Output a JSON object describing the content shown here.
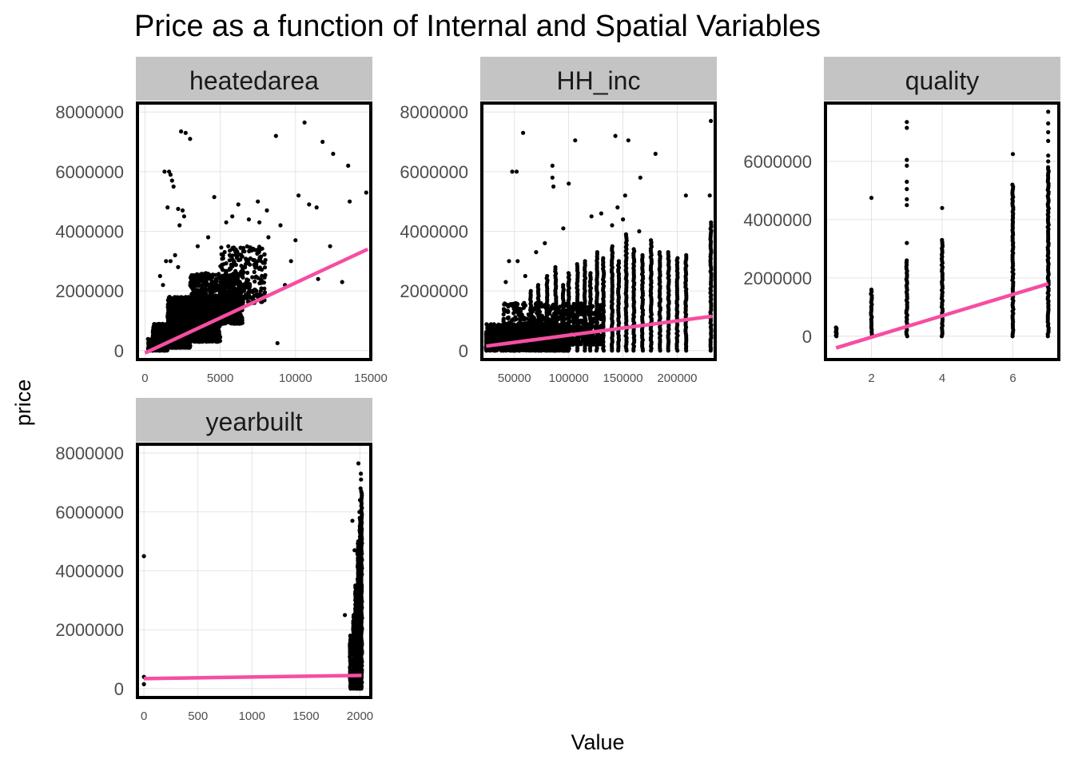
{
  "chart_data": {
    "type": "scatter",
    "title": "Price as a function of Internal and Spatial Variables",
    "xlabel": "Value",
    "ylabel": "price",
    "grid": true,
    "legend": "none",
    "colors": {
      "points": "#000000",
      "fit_line": "#f54ea2",
      "strip": "#c4c4c4",
      "border": "#000000"
    },
    "facets": [
      {
        "name": "heatedarea",
        "xlim": [
          -500,
          15000
        ],
        "ylim": [
          -300000,
          8300000
        ],
        "x_ticks": [
          0,
          5000,
          10000,
          15000
        ],
        "y_ticks": [
          0,
          2000000,
          4000000,
          6000000,
          8000000
        ],
        "fit": {
          "x": [
            0,
            14800
          ],
          "y": [
            -80000,
            3400000
          ]
        },
        "points": [
          [
            10600,
            7650000
          ],
          [
            8700,
            7200000
          ],
          [
            11800,
            7000000
          ],
          [
            12500,
            6600000
          ],
          [
            13500,
            6200000
          ],
          [
            13600,
            5000000
          ],
          [
            14700,
            5300000
          ],
          [
            10200,
            5200000
          ],
          [
            2400,
            7350000
          ],
          [
            2700,
            7300000
          ],
          [
            3000,
            7100000
          ],
          [
            1300,
            6000000
          ],
          [
            1600,
            6000000
          ],
          [
            1700,
            5900000
          ],
          [
            1800,
            5700000
          ],
          [
            1900,
            5500000
          ],
          [
            1500,
            4800000
          ],
          [
            2200,
            4750000
          ],
          [
            2500,
            4700000
          ],
          [
            2600,
            4500000
          ],
          [
            2300,
            4200000
          ],
          [
            4600,
            5150000
          ],
          [
            6200,
            4900000
          ],
          [
            7500,
            5000000
          ],
          [
            8100,
            4700000
          ],
          [
            9000,
            4200000
          ],
          [
            10900,
            4900000
          ],
          [
            11400,
            4800000
          ],
          [
            10000,
            3700000
          ],
          [
            12300,
            3500000
          ],
          [
            11500,
            2400000
          ],
          [
            13100,
            2300000
          ],
          [
            9300,
            2200000
          ],
          [
            8800,
            250000
          ],
          [
            9700,
            3000000
          ],
          [
            8200,
            3800000
          ],
          [
            7600,
            4300000
          ],
          [
            6900,
            4400000
          ],
          [
            5800,
            4500000
          ],
          [
            5400,
            4300000
          ],
          [
            1400,
            3000000
          ],
          [
            1700,
            3000000
          ],
          [
            2000,
            3200000
          ],
          [
            1000,
            2500000
          ],
          [
            3500,
            3500000
          ],
          [
            4200,
            3800000
          ],
          [
            2200,
            2800000
          ],
          [
            1200,
            2200000
          ]
        ],
        "clusters": [
          {
            "x": [
              500,
              3000
            ],
            "y": [
              100000,
              900000
            ],
            "n": 1400
          },
          {
            "x": [
              1500,
              5000
            ],
            "y": [
              300000,
              1800000
            ],
            "n": 1500
          },
          {
            "x": [
              3000,
              6500
            ],
            "y": [
              900000,
              2600000
            ],
            "n": 900
          },
          {
            "x": [
              5000,
              8000
            ],
            "y": [
              1600000,
              3500000
            ],
            "n": 280
          },
          {
            "x": [
              200,
              1500
            ],
            "y": [
              0,
              400000
            ],
            "n": 180
          }
        ]
      },
      {
        "name": "HH_inc",
        "xlim": [
          20000,
          235000
        ],
        "ylim": [
          -300000,
          8300000
        ],
        "x_ticks": [
          50000,
          100000,
          150000,
          200000
        ],
        "x_tick_labels": [
          "50000",
          "100000",
          "150000",
          "200000"
        ],
        "y_ticks": [
          0,
          2000000,
          4000000,
          6000000,
          8000000
        ],
        "fit": {
          "x": [
            24000,
            232000
          ],
          "y": [
            150000,
            1150000
          ]
        },
        "points": [
          [
            231000,
            7700000
          ],
          [
            58000,
            7300000
          ],
          [
            106000,
            7050000
          ],
          [
            143000,
            7200000
          ],
          [
            155000,
            7050000
          ],
          [
            180000,
            6600000
          ],
          [
            48000,
            6000000
          ],
          [
            52000,
            6000000
          ],
          [
            85000,
            6200000
          ],
          [
            85000,
            5800000
          ],
          [
            86000,
            5500000
          ],
          [
            100000,
            5600000
          ],
          [
            166000,
            5800000
          ],
          [
            208000,
            5200000
          ],
          [
            152000,
            5200000
          ],
          [
            121000,
            4500000
          ],
          [
            145000,
            4800000
          ],
          [
            150000,
            4400000
          ],
          [
            130000,
            4600000
          ],
          [
            140000,
            4200000
          ],
          [
            230000,
            5200000
          ],
          [
            165000,
            4000000
          ],
          [
            95000,
            4100000
          ],
          [
            78000,
            3600000
          ],
          [
            70000,
            3300000
          ],
          [
            45000,
            3000000
          ],
          [
            53000,
            3000000
          ],
          [
            60000,
            2500000
          ],
          [
            42000,
            2300000
          ]
        ],
        "columns": [
          [
            24000,
            600000
          ],
          [
            32000,
            700000
          ],
          [
            40000,
            1000000
          ],
          [
            55000,
            1400000
          ],
          [
            65000,
            2000000
          ],
          [
            72000,
            2200000
          ],
          [
            80000,
            2500000
          ],
          [
            88000,
            2800000
          ],
          [
            95000,
            2200000
          ],
          [
            100000,
            2600000
          ],
          [
            108000,
            2900000
          ],
          [
            115000,
            3000000
          ],
          [
            120000,
            2600000
          ],
          [
            126000,
            3300000
          ],
          [
            132000,
            3100000
          ],
          [
            140000,
            3500000
          ],
          [
            146000,
            3000000
          ],
          [
            153000,
            3900000
          ],
          [
            160000,
            3400000
          ],
          [
            168000,
            3200000
          ],
          [
            176000,
            3700000
          ],
          [
            184000,
            3300000
          ],
          [
            192000,
            3300000
          ],
          [
            200000,
            3100000
          ],
          [
            208000,
            3200000
          ],
          [
            231000,
            4300000
          ]
        ],
        "clusters": [
          {
            "x": [
              24000,
              100000
            ],
            "y": [
              0,
              900000
            ],
            "n": 1500
          },
          {
            "x": [
              40000,
              130000
            ],
            "y": [
              200000,
              1600000
            ],
            "n": 700
          }
        ]
      },
      {
        "name": "quality",
        "xlim": [
          0.7,
          7.3
        ],
        "ylim": [
          -800000,
          8000000
        ],
        "x_ticks": [
          2,
          4,
          6
        ],
        "y_ticks": [
          0,
          2000000,
          4000000,
          6000000
        ],
        "fit": {
          "x": [
            1,
            7
          ],
          "y": [
            -400000,
            1800000
          ]
        },
        "points": [
          [
            2,
            4750000
          ],
          [
            3,
            7350000
          ],
          [
            3,
            7150000
          ],
          [
            3,
            6050000
          ],
          [
            3,
            5850000
          ],
          [
            3,
            5300000
          ],
          [
            3,
            5050000
          ],
          [
            3,
            4700000
          ],
          [
            3,
            4500000
          ],
          [
            3,
            3200000
          ],
          [
            4,
            4400000
          ],
          [
            6,
            6250000
          ],
          [
            7,
            7700000
          ],
          [
            7,
            7300000
          ],
          [
            7,
            7000000
          ],
          [
            7,
            6700000
          ],
          [
            7,
            6200000
          ],
          [
            7,
            6000000
          ]
        ],
        "columns": [
          [
            1,
            0,
            300000
          ],
          [
            2,
            0,
            1600000
          ],
          [
            3,
            0,
            2600000
          ],
          [
            4,
            0,
            3300000
          ],
          [
            6,
            0,
            5200000
          ],
          [
            7,
            0,
            5800000
          ]
        ]
      },
      {
        "name": "yearbuilt",
        "xlim": [
          -60,
          2100
        ],
        "ylim": [
          -300000,
          8300000
        ],
        "x_ticks": [
          0,
          500,
          1000,
          1500,
          2000
        ],
        "y_ticks": [
          0,
          2000000,
          4000000,
          6000000,
          8000000
        ],
        "fit": {
          "x": [
            0,
            2015
          ],
          "y": [
            340000,
            450000
          ]
        },
        "points": [
          [
            0,
            4500000
          ],
          [
            0,
            400000
          ],
          [
            0,
            150000
          ],
          [
            1860,
            2500000
          ],
          [
            1930,
            5700000
          ],
          [
            1985,
            7650000
          ],
          [
            2008,
            7300000
          ],
          [
            2010,
            7100000
          ],
          [
            2005,
            6800000
          ],
          [
            2000,
            6400000
          ],
          [
            1995,
            6000000
          ],
          [
            2010,
            5300000
          ],
          [
            1950,
            4700000
          ]
        ],
        "columns": [
          [
            1910,
            0,
            1800000
          ],
          [
            1940,
            0,
            2500000
          ],
          [
            1960,
            0,
            3500000
          ],
          [
            1980,
            0,
            5000000
          ],
          [
            2000,
            0,
            5800000
          ],
          [
            2015,
            0,
            6700000
          ]
        ]
      }
    ]
  }
}
